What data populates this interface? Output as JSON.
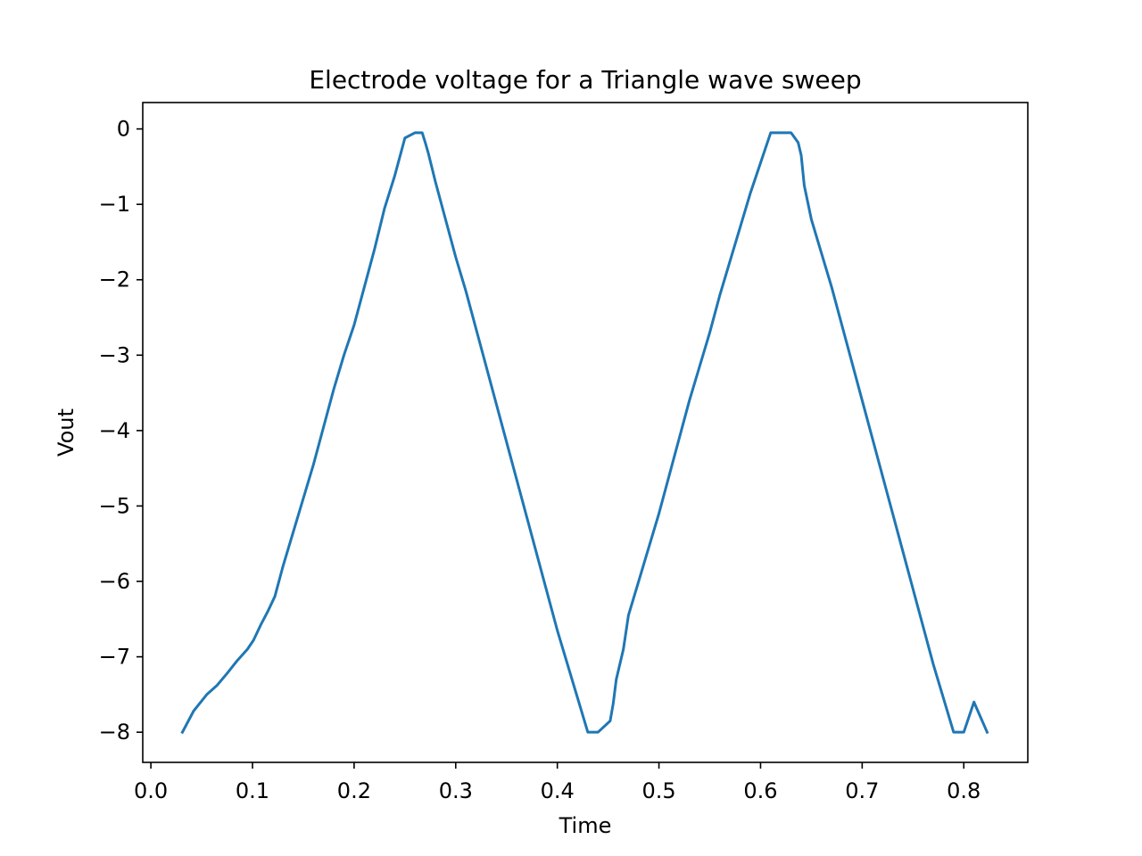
{
  "chart_data": {
    "type": "line",
    "title": "Electrode voltage for a Triangle wave sweep",
    "xlabel": "Time",
    "ylabel": "Vout",
    "xlim": [
      -0.008,
      0.863
    ],
    "ylim": [
      -8.4,
      0.35
    ],
    "grid": false,
    "legend": "none",
    "x_ticks": [
      {
        "value": 0.0,
        "label": "0.0"
      },
      {
        "value": 0.1,
        "label": "0.1"
      },
      {
        "value": 0.2,
        "label": "0.2"
      },
      {
        "value": 0.3,
        "label": "0.3"
      },
      {
        "value": 0.4,
        "label": "0.4"
      },
      {
        "value": 0.5,
        "label": "0.5"
      },
      {
        "value": 0.6,
        "label": "0.6"
      },
      {
        "value": 0.7,
        "label": "0.7"
      },
      {
        "value": 0.8,
        "label": "0.8"
      }
    ],
    "y_ticks": [
      {
        "value": 0,
        "label": "0"
      },
      {
        "value": -1,
        "label": "−1"
      },
      {
        "value": -2,
        "label": "−2"
      },
      {
        "value": -3,
        "label": "−3"
      },
      {
        "value": -4,
        "label": "−4"
      },
      {
        "value": -5,
        "label": "−5"
      },
      {
        "value": -6,
        "label": "−6"
      },
      {
        "value": -7,
        "label": "−7"
      },
      {
        "value": -8,
        "label": "−8"
      }
    ],
    "series": [
      {
        "color": "#1f77b4",
        "x": [
          0.031,
          0.042,
          0.055,
          0.065,
          0.075,
          0.085,
          0.095,
          0.101,
          0.108,
          0.115,
          0.122,
          0.13,
          0.14,
          0.15,
          0.16,
          0.17,
          0.18,
          0.19,
          0.2,
          0.21,
          0.22,
          0.23,
          0.24,
          0.25,
          0.26,
          0.267,
          0.27,
          0.273,
          0.28,
          0.29,
          0.3,
          0.31,
          0.32,
          0.33,
          0.34,
          0.35,
          0.36,
          0.37,
          0.38,
          0.39,
          0.4,
          0.41,
          0.42,
          0.43,
          0.44,
          0.452,
          0.455,
          0.458,
          0.465,
          0.47,
          0.48,
          0.49,
          0.5,
          0.51,
          0.52,
          0.53,
          0.54,
          0.55,
          0.56,
          0.57,
          0.58,
          0.59,
          0.6,
          0.61,
          0.62,
          0.63,
          0.637,
          0.64,
          0.643,
          0.65,
          0.66,
          0.67,
          0.68,
          0.69,
          0.7,
          0.71,
          0.72,
          0.73,
          0.74,
          0.75,
          0.76,
          0.77,
          0.78,
          0.79,
          0.8,
          0.81,
          0.823
        ],
        "y": [
          -8.0,
          -7.72,
          -7.5,
          -7.38,
          -7.22,
          -7.05,
          -6.9,
          -6.78,
          -6.58,
          -6.4,
          -6.2,
          -5.8,
          -5.35,
          -4.9,
          -4.45,
          -3.95,
          -3.45,
          -3.0,
          -2.6,
          -2.1,
          -1.6,
          -1.05,
          -0.62,
          -0.12,
          -0.05,
          -0.05,
          -0.18,
          -0.32,
          -0.7,
          -1.2,
          -1.7,
          -2.15,
          -2.65,
          -3.15,
          -3.65,
          -4.15,
          -4.65,
          -5.15,
          -5.65,
          -6.15,
          -6.65,
          -7.1,
          -7.55,
          -8.0,
          -8.0,
          -7.85,
          -7.62,
          -7.3,
          -6.9,
          -6.45,
          -6.0,
          -5.55,
          -5.1,
          -4.6,
          -4.1,
          -3.6,
          -3.15,
          -2.7,
          -2.2,
          -1.75,
          -1.3,
          -0.85,
          -0.45,
          -0.05,
          -0.05,
          -0.05,
          -0.18,
          -0.35,
          -0.75,
          -1.2,
          -1.65,
          -2.1,
          -2.6,
          -3.1,
          -3.6,
          -4.1,
          -4.6,
          -5.1,
          -5.6,
          -6.1,
          -6.6,
          -7.1,
          -7.55,
          -8.0,
          -8.0,
          -7.6,
          -8.0
        ]
      }
    ]
  }
}
